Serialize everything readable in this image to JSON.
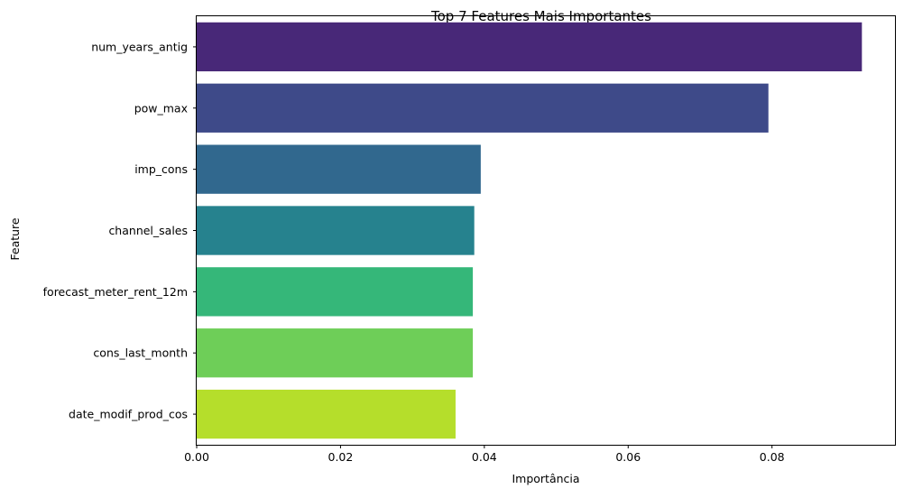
{
  "chart_data": {
    "type": "bar",
    "orientation": "horizontal",
    "title": "Top 7 Features Mais Importantes",
    "xlabel": "Importância",
    "ylabel": "Feature",
    "categories": [
      "num_years_antig",
      "pow_max",
      "imp_cons",
      "channel_sales",
      "forecast_meter_rent_12m",
      "cons_last_month",
      "date_modif_prod_cos"
    ],
    "values": [
      0.0925,
      0.0795,
      0.0395,
      0.0386,
      0.0384,
      0.0384,
      0.036
    ],
    "colors": [
      "#482878",
      "#3e4a89",
      "#31688e",
      "#26828e",
      "#35b779",
      "#6ece58",
      "#b5de2b"
    ],
    "xlim": [
      0,
      0.0971
    ],
    "xticks": [
      {
        "value": 0.0,
        "label": "0.00"
      },
      {
        "value": 0.02,
        "label": "0.02"
      },
      {
        "value": 0.04,
        "label": "0.04"
      },
      {
        "value": 0.06,
        "label": "0.06"
      },
      {
        "value": 0.08,
        "label": "0.08"
      }
    ],
    "grid": false,
    "legend": "none"
  }
}
